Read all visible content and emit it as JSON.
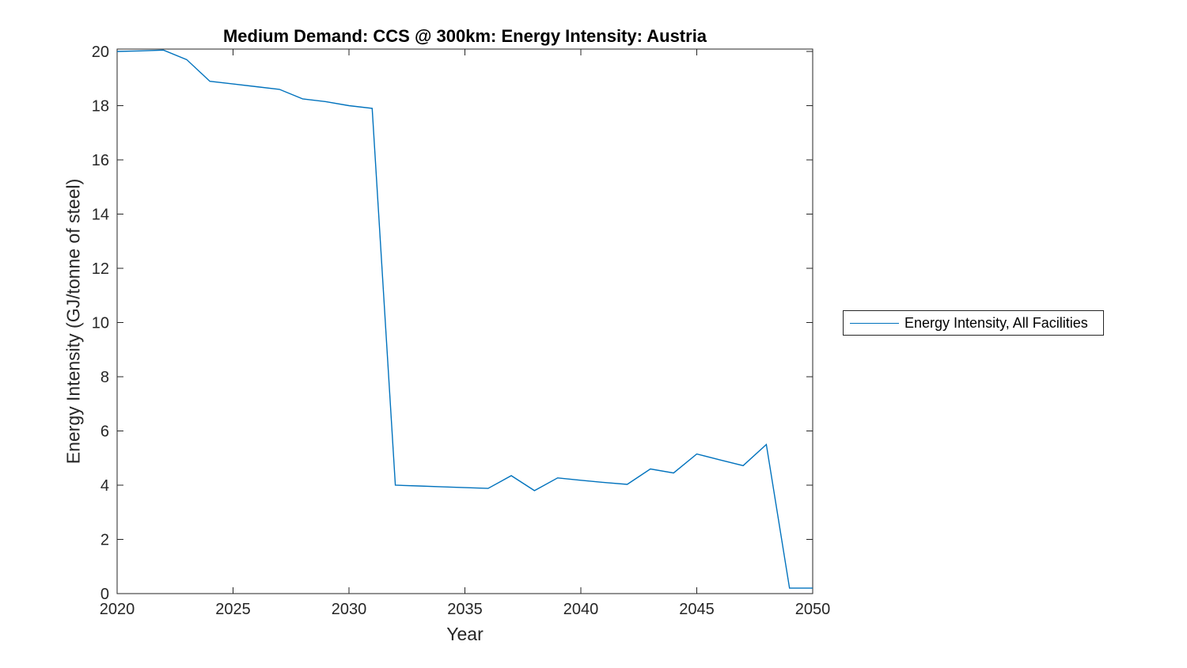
{
  "chart_data": {
    "type": "line",
    "title": "Medium Demand: CCS @ 300km: Energy Intensity: Austria",
    "xlabel": "Year",
    "ylabel": "Energy Intensity (GJ/tonne of steel)",
    "xlim": [
      2020,
      2050
    ],
    "ylim": [
      0,
      20
    ],
    "xticks": [
      2020,
      2025,
      2030,
      2035,
      2040,
      2045,
      2050
    ],
    "yticks": [
      0,
      2,
      4,
      6,
      8,
      10,
      12,
      14,
      16,
      18,
      20
    ],
    "grid": false,
    "legend_position": "outside-right",
    "axis_color": "#262626",
    "background_color": "#FFFFFF",
    "x": [
      2020,
      2021,
      2022,
      2023,
      2024,
      2025,
      2026,
      2027,
      2028,
      2029,
      2030,
      2031,
      2032,
      2033,
      2034,
      2035,
      2036,
      2037,
      2038,
      2039,
      2040,
      2041,
      2042,
      2043,
      2044,
      2045,
      2046,
      2047,
      2048,
      2049,
      2050
    ],
    "series": [
      {
        "name": "Energy Intensity, All Facilities",
        "color": "#0072BD",
        "values": [
          20.0,
          20.02,
          20.05,
          19.7,
          18.9,
          18.8,
          18.7,
          18.6,
          18.25,
          18.15,
          18.0,
          17.9,
          4.0,
          3.97,
          3.94,
          3.91,
          3.88,
          4.35,
          3.8,
          4.27,
          4.18,
          4.1,
          4.03,
          4.6,
          4.45,
          5.15,
          4.93,
          4.72,
          5.5,
          0.2,
          0.2
        ]
      }
    ]
  }
}
